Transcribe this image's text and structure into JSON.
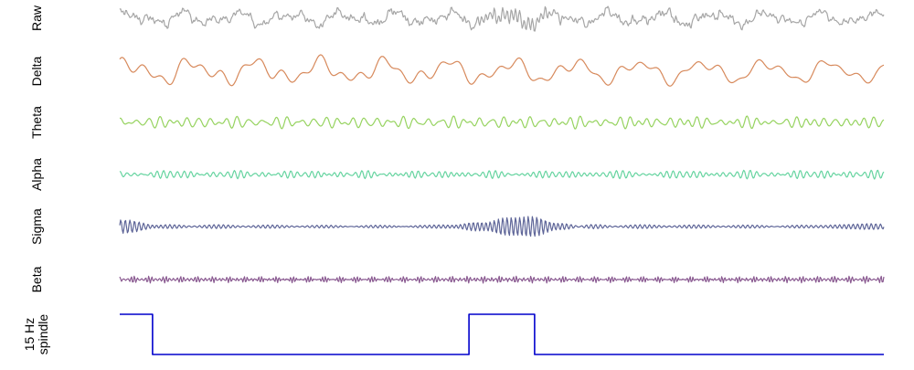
{
  "chart_data": {
    "type": "line",
    "title": "",
    "xlabel": "",
    "ylabel": "",
    "grid": false,
    "legend": "none",
    "series": [
      {
        "name": "Raw",
        "label_lines": [
          "Raw"
        ],
        "color": "#a6a6a6",
        "kind": "broadband",
        "components": [
          {
            "freq": 1.2,
            "amp": 0.35,
            "phase": 0.3
          },
          {
            "freq": 2.1,
            "amp": 0.25,
            "phase": 1.1
          },
          {
            "freq": 5.0,
            "amp": 0.18,
            "phase": 0.4
          },
          {
            "freq": 7.3,
            "amp": 0.14,
            "phase": 2.0
          },
          {
            "freq": 10.2,
            "amp": 0.12,
            "phase": 0.9
          },
          {
            "freq": 19.0,
            "amp": 0.1,
            "phase": 1.7
          },
          {
            "freq": 23.5,
            "amp": 0.08,
            "phase": 0.2
          }
        ],
        "burst": {
          "center": 0.52,
          "width": 0.04,
          "freq": 15,
          "amp": 0.45
        }
      },
      {
        "name": "Delta",
        "label_lines": [
          "Delta"
        ],
        "color": "#d7895b",
        "kind": "band",
        "components": [
          {
            "freq": 1.0,
            "amp": 0.55,
            "phase": 0.6
          },
          {
            "freq": 1.9,
            "amp": 0.4,
            "phase": 1.9
          },
          {
            "freq": 3.2,
            "amp": 0.3,
            "phase": 0.8
          }
        ]
      },
      {
        "name": "Theta",
        "label_lines": [
          "Theta"
        ],
        "color": "#96d35f",
        "kind": "band",
        "components": [
          {
            "freq": 5.0,
            "amp": 0.35,
            "phase": 0.2
          },
          {
            "freq": 6.5,
            "amp": 0.3,
            "phase": 1.4
          },
          {
            "freq": 7.6,
            "amp": 0.25,
            "phase": 2.3
          }
        ]
      },
      {
        "name": "Alpha",
        "label_lines": [
          "Alpha"
        ],
        "color": "#66d4a0",
        "kind": "band",
        "components": [
          {
            "freq": 9.0,
            "amp": 0.3,
            "phase": 0.5
          },
          {
            "freq": 10.0,
            "amp": 0.3,
            "phase": 1.6
          },
          {
            "freq": 11.5,
            "amp": 0.2,
            "phase": 2.7
          }
        ]
      },
      {
        "name": "Sigma",
        "label_lines": [
          "Sigma"
        ],
        "color": "#5e6598",
        "kind": "band",
        "components": [
          {
            "freq": 13.0,
            "amp": 0.12,
            "phase": 0.3
          },
          {
            "freq": 14.2,
            "amp": 0.1,
            "phase": 1.2
          }
        ],
        "bursts": [
          {
            "center": 0.01,
            "width": 0.03,
            "freq": 14,
            "amp": 0.5
          },
          {
            "center": 0.52,
            "width": 0.04,
            "freq": 15,
            "amp": 0.9
          },
          {
            "center": 0.97,
            "width": 0.03,
            "freq": 14,
            "amp": 0.4
          }
        ]
      },
      {
        "name": "Beta",
        "label_lines": [
          "Beta"
        ],
        "color": "#8a5a91",
        "kind": "band",
        "components": [
          {
            "freq": 18.0,
            "amp": 0.22,
            "phase": 0.4
          },
          {
            "freq": 22.0,
            "amp": 0.2,
            "phase": 1.3
          },
          {
            "freq": 26.0,
            "amp": 0.15,
            "phase": 2.1
          }
        ]
      },
      {
        "name": "15 Hz spindle",
        "label_lines": [
          "15 Hz",
          "spindle"
        ],
        "color": "#0000cc",
        "kind": "step",
        "x": [
          0.0,
          0.043,
          0.043,
          0.457,
          0.457,
          0.543,
          0.543,
          1.0
        ],
        "y": [
          1,
          1,
          0,
          0,
          1,
          1,
          0,
          0
        ]
      }
    ]
  }
}
